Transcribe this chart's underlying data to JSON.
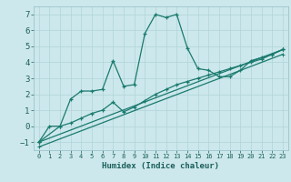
{
  "xlabel": "Humidex (Indice chaleur)",
  "background_color": "#cce8ec",
  "line_color": "#1a7a6e",
  "xlim": [
    -0.5,
    23.5
  ],
  "ylim": [
    -1.5,
    7.5
  ],
  "xticks": [
    0,
    1,
    2,
    3,
    4,
    5,
    6,
    7,
    8,
    9,
    10,
    11,
    12,
    13,
    14,
    15,
    16,
    17,
    18,
    19,
    20,
    21,
    22,
    23
  ],
  "yticks": [
    -1,
    0,
    1,
    2,
    3,
    4,
    5,
    6,
    7
  ],
  "curve1_x": [
    0,
    1,
    2,
    3,
    4,
    5,
    6,
    7,
    8,
    9,
    10,
    11,
    12,
    13,
    14,
    15,
    16,
    17,
    18,
    19,
    20,
    21,
    22,
    23
  ],
  "curve1_y": [
    -1.0,
    0.0,
    0.0,
    1.7,
    2.2,
    2.2,
    2.3,
    4.1,
    2.5,
    2.6,
    5.8,
    7.0,
    6.8,
    7.0,
    4.9,
    3.6,
    3.5,
    3.1,
    3.1,
    3.5,
    4.1,
    4.3,
    4.5,
    4.8
  ],
  "curve2_x": [
    0,
    2,
    3,
    4,
    5,
    6,
    7,
    8,
    9,
    10,
    11,
    12,
    13,
    14,
    15,
    16,
    17,
    18,
    19,
    20,
    21,
    22,
    23
  ],
  "curve2_y": [
    -1.0,
    0.0,
    0.2,
    0.5,
    0.8,
    1.0,
    1.5,
    0.9,
    1.2,
    1.6,
    2.0,
    2.3,
    2.6,
    2.8,
    3.0,
    3.2,
    3.4,
    3.6,
    3.8,
    4.0,
    4.2,
    4.5,
    4.8
  ],
  "curve3_x": [
    0,
    23
  ],
  "curve3_y": [
    -1.0,
    4.8
  ],
  "curve4_x": [
    0,
    23
  ],
  "curve4_y": [
    -1.0,
    4.8
  ]
}
